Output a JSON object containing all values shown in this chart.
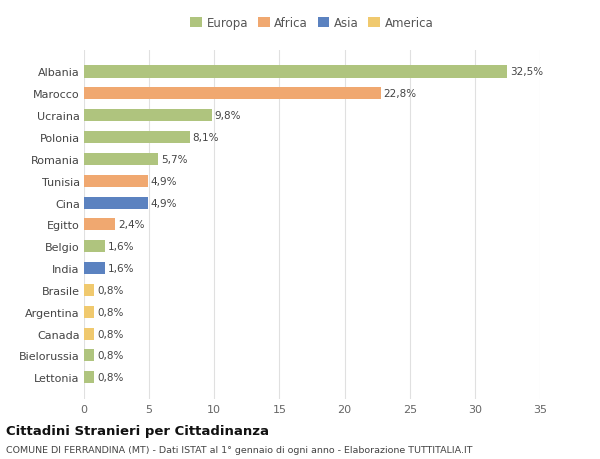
{
  "categories": [
    "Lettonia",
    "Bielorussia",
    "Canada",
    "Argentina",
    "Brasile",
    "India",
    "Belgio",
    "Egitto",
    "Cina",
    "Tunisia",
    "Romania",
    "Polonia",
    "Ucraina",
    "Marocco",
    "Albania"
  ],
  "values": [
    0.8,
    0.8,
    0.8,
    0.8,
    0.8,
    1.6,
    1.6,
    2.4,
    4.9,
    4.9,
    5.7,
    8.1,
    9.8,
    22.8,
    32.5
  ],
  "labels": [
    "0,8%",
    "0,8%",
    "0,8%",
    "0,8%",
    "0,8%",
    "1,6%",
    "1,6%",
    "2,4%",
    "4,9%",
    "4,9%",
    "5,7%",
    "8,1%",
    "9,8%",
    "22,8%",
    "32,5%"
  ],
  "colors": [
    "#afc47e",
    "#afc47e",
    "#f0c96e",
    "#f0c96e",
    "#f0c96e",
    "#5b82c0",
    "#afc47e",
    "#f0a870",
    "#5b82c0",
    "#f0a870",
    "#afc47e",
    "#afc47e",
    "#afc47e",
    "#f0a870",
    "#afc47e"
  ],
  "legend": [
    {
      "label": "Europa",
      "color": "#afc47e"
    },
    {
      "label": "Africa",
      "color": "#f0a870"
    },
    {
      "label": "Asia",
      "color": "#5b82c0"
    },
    {
      "label": "America",
      "color": "#f0c96e"
    }
  ],
  "xlim": [
    0,
    35
  ],
  "xticks": [
    0,
    5,
    10,
    15,
    20,
    25,
    30,
    35
  ],
  "title": "Cittadini Stranieri per Cittadinanza",
  "subtitle": "COMUNE DI FERRANDINA (MT) - Dati ISTAT al 1° gennaio di ogni anno - Elaborazione TUTTITALIA.IT",
  "background_color": "#ffffff",
  "grid_color": "#e0e0e0"
}
